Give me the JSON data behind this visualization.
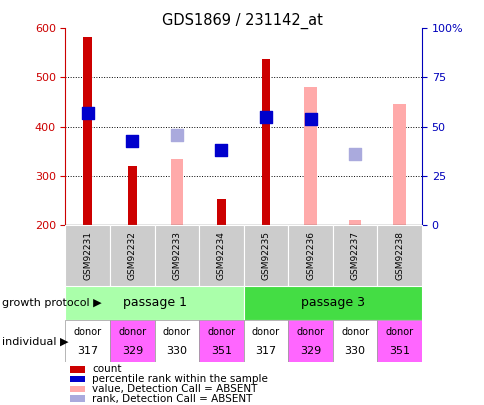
{
  "title": "GDS1869 / 231142_at",
  "samples": [
    "GSM92231",
    "GSM92232",
    "GSM92233",
    "GSM92234",
    "GSM92235",
    "GSM92236",
    "GSM92237",
    "GSM92238"
  ],
  "count_values": [
    583,
    320,
    null,
    252,
    537,
    null,
    null,
    null
  ],
  "count_color": "#cc0000",
  "absent_value_values": [
    null,
    null,
    333,
    null,
    null,
    480,
    210,
    445
  ],
  "absent_value_color": "#ffaaaa",
  "percentile_rank_values": [
    428,
    370,
    null,
    352,
    420,
    415,
    null,
    null
  ],
  "percentile_rank_color": "#0000cc",
  "absent_rank_values": [
    null,
    null,
    383,
    null,
    null,
    null,
    345,
    null
  ],
  "absent_rank_color": "#aaaadd",
  "ylim": [
    200,
    600
  ],
  "yticks": [
    200,
    300,
    400,
    500,
    600
  ],
  "right_ylabels": [
    "0",
    "25",
    "50",
    "75",
    "100%"
  ],
  "left_tick_color": "#cc0000",
  "right_tick_color": "#0000bb",
  "passage1_color": "#aaffaa",
  "passage3_color": "#44dd44",
  "donors": [
    "317",
    "329",
    "330",
    "351",
    "317",
    "329",
    "330",
    "351"
  ],
  "donor_colors": [
    "#ffffff",
    "#ff66ff",
    "#ffffff",
    "#ff66ff",
    "#ffffff",
    "#ff66ff",
    "#ffffff",
    "#ff66ff"
  ],
  "legend_items": [
    {
      "label": "count",
      "color": "#cc0000"
    },
    {
      "label": "percentile rank within the sample",
      "color": "#0000cc"
    },
    {
      "label": "value, Detection Call = ABSENT",
      "color": "#ffaaaa"
    },
    {
      "label": "rank, Detection Call = ABSENT",
      "color": "#aaaadd"
    }
  ]
}
